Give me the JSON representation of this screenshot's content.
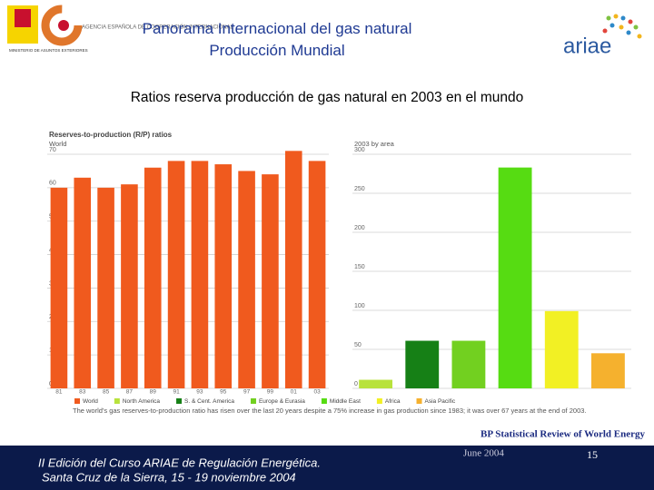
{
  "header": {
    "agency": "AGENCIA ESPAÑOLA DE COOPERACIÓN INTERNACIONAL",
    "ministry": "MINISTERIO DE ASUNTOS EXTERIORES",
    "title": "Panorama Internacional del gas natural",
    "subtitle": "Producción Mundial",
    "brand": "ariae"
  },
  "heading": "Ratios reserva producción de gas natural en 2003 en el mundo",
  "panel_title": "Reserves-to-production (R/P) ratios",
  "chart_data": [
    {
      "type": "bar",
      "title": "World",
      "categories": [
        "81",
        "83",
        "85",
        "87",
        "89",
        "91",
        "93",
        "95",
        "97",
        "99",
        "01",
        "03"
      ],
      "values": [
        60,
        63,
        60,
        61,
        66,
        68,
        68,
        67,
        65,
        64,
        71,
        68
      ],
      "color": "#f05a1e",
      "ylim": [
        0,
        70
      ],
      "yticks": [
        0,
        10,
        20,
        30,
        40,
        50,
        60,
        70
      ],
      "grid": true
    },
    {
      "type": "bar",
      "title": "2003 by area",
      "values": [
        11,
        61,
        61,
        283,
        99,
        45
      ],
      "colors": [
        "#b8e23c",
        "#168016",
        "#72d020",
        "#56dc12",
        "#f2f024",
        "#f5b12e"
      ],
      "ylim": [
        0,
        300
      ],
      "yticks": [
        0,
        50,
        100,
        150,
        200,
        250,
        300
      ],
      "grid": true
    }
  ],
  "legend": [
    {
      "label": "World",
      "color": "#f05a1e"
    },
    {
      "label": "North America",
      "color": "#b8e23c"
    },
    {
      "label": "S. & Cent. America",
      "color": "#168016"
    },
    {
      "label": "Europe & Eurasia",
      "color": "#72d020"
    },
    {
      "label": "Middle East",
      "color": "#56dc12"
    },
    {
      "label": "Africa",
      "color": "#f2f024"
    },
    {
      "label": "Asia Pacific",
      "color": "#f5b12e"
    }
  ],
  "footnote": "The world's gas reserves-to-production ratio has risen over the last 20 years despite a 75% increase in gas production since 1983; it was over 67 years at the end of 2003.",
  "source": "BP Statistical Review of World Energy",
  "date": "June 2004",
  "page_number": "15",
  "footer": {
    "line1": "II Edición del Curso ARIAE de Regulación Energética.",
    "line2": "Santa Cruz de la Sierra, 15 - 19 noviembre 2004"
  }
}
